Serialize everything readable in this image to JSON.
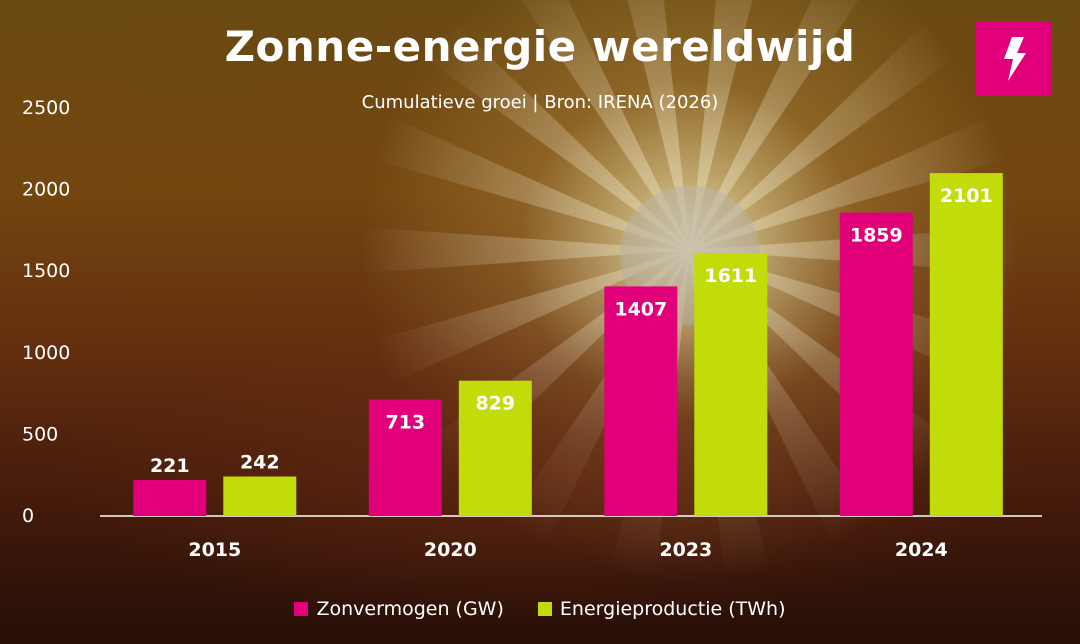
{
  "title": "Zonne-energie wereldwijd",
  "subtitle": "Cumulatieve groei | Bron: IRENA (2026)",
  "logo_icon": "lightning-bolt-icon",
  "colors": {
    "series1": "#e2007a",
    "series2": "#c2dc0a",
    "accent": "#e2007a"
  },
  "chart_data": {
    "type": "bar",
    "categories": [
      "2015",
      "2020",
      "2023",
      "2024"
    ],
    "series": [
      {
        "name": "Zonvermogen (GW)",
        "values": [
          221,
          713,
          1407,
          1859
        ]
      },
      {
        "name": "Energieproductie (TWh)",
        "values": [
          242,
          829,
          1611,
          2101
        ]
      }
    ],
    "ylim": [
      0,
      2500
    ],
    "yticks": [
      0,
      500,
      1000,
      1500,
      2000,
      2500
    ],
    "grid": false,
    "legend": "bottom-center"
  }
}
